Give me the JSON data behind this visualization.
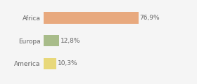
{
  "categories": [
    "Africa",
    "Europa",
    "America"
  ],
  "values": [
    76.9,
    12.8,
    10.3
  ],
  "labels": [
    "76,9%",
    "12,8%",
    "10,3%"
  ],
  "bar_colors": [
    "#e8a97e",
    "#a8bc8a",
    "#e8d87a"
  ],
  "background_color": "#f5f5f5",
  "xlim": [
    0,
    105
  ],
  "bar_height": 0.5,
  "label_fontsize": 6.5,
  "tick_fontsize": 6.5
}
